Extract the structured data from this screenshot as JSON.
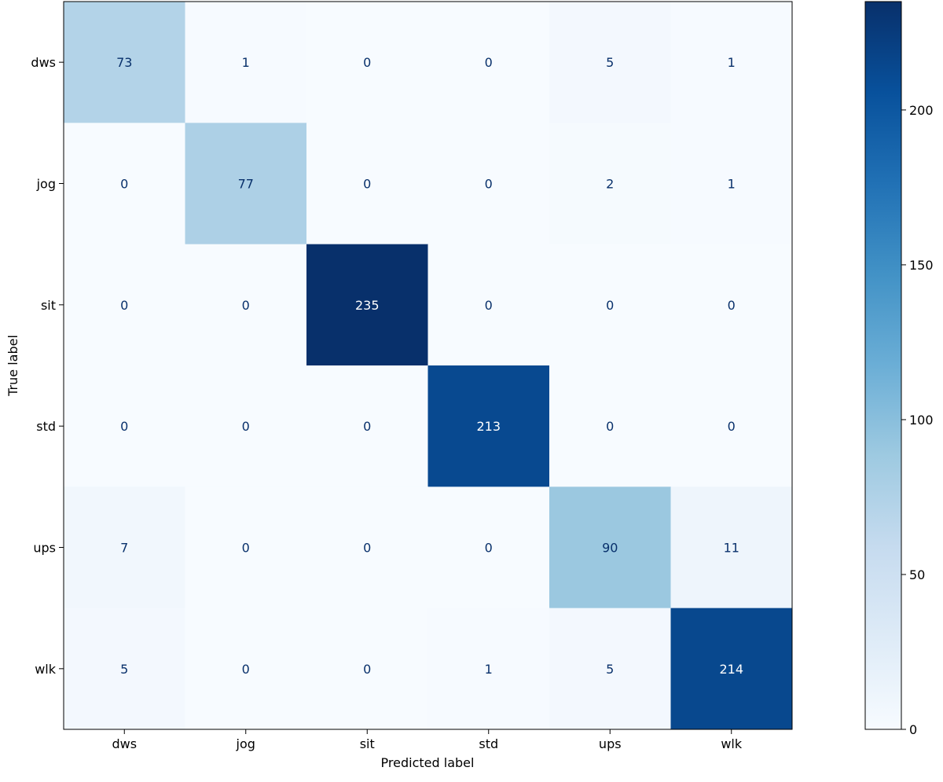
{
  "chart_data": {
    "type": "heatmap",
    "title": "",
    "xlabel": "Predicted label",
    "ylabel": "True label",
    "x_categories": [
      "dws",
      "jog",
      "sit",
      "std",
      "ups",
      "wlk"
    ],
    "y_categories": [
      "dws",
      "jog",
      "sit",
      "std",
      "ups",
      "wlk"
    ],
    "values": [
      [
        73,
        1,
        0,
        0,
        5,
        1
      ],
      [
        0,
        77,
        0,
        0,
        2,
        1
      ],
      [
        0,
        0,
        235,
        0,
        0,
        0
      ],
      [
        0,
        0,
        0,
        213,
        0,
        0
      ],
      [
        7,
        0,
        0,
        0,
        90,
        11
      ],
      [
        5,
        0,
        0,
        1,
        5,
        214
      ]
    ],
    "colormap": "Blues",
    "color_range": [
      0,
      235
    ],
    "colorbar": {
      "ticks": [
        0,
        50,
        100,
        150,
        200
      ],
      "tick_labels": [
        "0",
        "50",
        "100",
        "150",
        "200"
      ]
    },
    "grid": false
  }
}
